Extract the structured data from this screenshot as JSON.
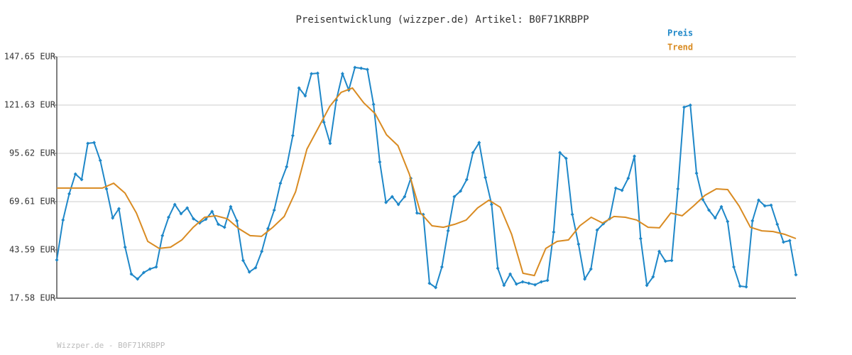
{
  "chart_data": {
    "type": "line",
    "title": "Preisentwicklung (wizzper.de) Artikel: B0F71KRBPP",
    "footer": "Wizzper.de - B0F71KRBPP",
    "ylim": [
      17.58,
      147.65
    ],
    "yticks": [
      {
        "value": 17.58,
        "label": "17.58 EUR"
      },
      {
        "value": 43.59,
        "label": "43.59 EUR"
      },
      {
        "value": 69.61,
        "label": "69.61 EUR"
      },
      {
        "value": 95.62,
        "label": "95.62 EUR"
      },
      {
        "value": 121.63,
        "label": "121.63 EUR"
      },
      {
        "value": 147.65,
        "label": "147.65 EUR"
      }
    ],
    "grid": true,
    "legend": "top-right",
    "series": [
      {
        "name": "Preis",
        "color": "#1e87c8",
        "markers": true,
        "values": [
          38.2,
          59.7,
          73.8,
          84.5,
          81.5,
          101.0,
          101.4,
          91.8,
          76.5,
          60.8,
          65.8,
          45.1,
          30.6,
          27.9,
          31.4,
          33.3,
          34.4,
          51.3,
          61.2,
          68.1,
          63.1,
          66.2,
          60.4,
          58.1,
          60.1,
          64.3,
          57.4,
          55.8,
          66.9,
          59.3,
          37.9,
          31.7,
          34.0,
          42.8,
          55.1,
          65.0,
          79.5,
          88.4,
          105.2,
          130.8,
          126.6,
          138.5,
          138.8,
          112.4,
          101.0,
          124.3,
          138.5,
          129.7,
          141.9,
          141.5,
          140.8,
          122.0,
          91.0,
          69.2,
          72.3,
          68.1,
          72.3,
          82.2,
          63.5,
          62.7,
          25.6,
          23.3,
          34.4,
          53.9,
          72.3,
          75.3,
          81.5,
          96.0,
          101.4,
          82.6,
          68.1,
          33.7,
          24.5,
          30.6,
          25.2,
          26.4,
          25.6,
          24.8,
          26.4,
          27.2,
          53.2,
          96.0,
          92.9,
          62.7,
          46.7,
          27.9,
          33.3,
          54.3,
          57.7,
          60.4,
          76.9,
          75.7,
          82.2,
          94.1,
          49.7,
          24.5,
          29.1,
          42.8,
          37.5,
          37.9,
          76.5,
          120.5,
          121.6,
          84.9,
          70.8,
          65.0,
          60.8,
          66.9,
          58.9,
          34.4,
          24.1,
          23.7,
          59.3,
          70.4,
          67.3,
          67.7,
          57.4,
          47.8,
          48.6,
          30.2
        ]
      },
      {
        "name": "Trend",
        "color": "#d98b22",
        "markers": false,
        "values": [
          76.9,
          76.9,
          76.9,
          76.9,
          76.9,
          79.5,
          74.2,
          63.5,
          48.2,
          44.4,
          45.1,
          49.0,
          55.8,
          61.2,
          62.0,
          60.4,
          55.1,
          51.3,
          50.9,
          55.8,
          61.6,
          74.9,
          97.9,
          109.4,
          120.9,
          128.5,
          130.8,
          122.8,
          117.0,
          105.6,
          99.8,
          84.5,
          63.5,
          56.6,
          55.8,
          57.4,
          59.7,
          66.2,
          70.4,
          66.6,
          52.0,
          31.0,
          29.8,
          44.4,
          48.2,
          49.0,
          56.6,
          61.2,
          58.1,
          61.6,
          61.2,
          59.7,
          55.8,
          55.5,
          63.5,
          62.0,
          67.3,
          73.0,
          76.5,
          76.1,
          67.3,
          55.8,
          53.9,
          53.5,
          52.0,
          49.7
        ]
      }
    ]
  }
}
